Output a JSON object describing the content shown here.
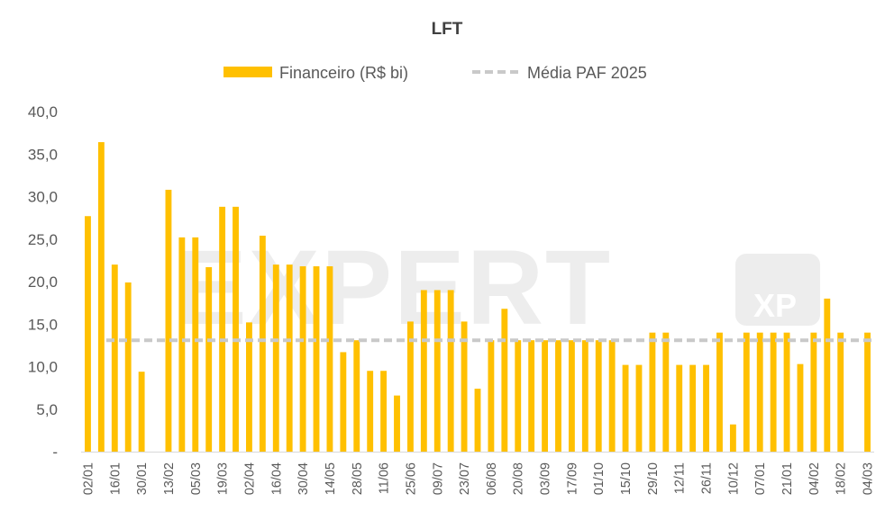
{
  "watermark": {
    "main": "EXPERT",
    "badge": "XP"
  },
  "colors": {
    "bar": "#FFC000",
    "avg_line": "#C9C9C9",
    "axis": "#D9D9D9",
    "text": "#595959"
  },
  "chart_data": {
    "type": "bar",
    "title": "LFT",
    "legend_position": "top",
    "grid": false,
    "xlabel": "",
    "ylabel": "",
    "ylim": [
      0,
      40
    ],
    "yticks": [
      {
        "value": 0,
        "label": "-"
      },
      {
        "value": 5,
        "label": "5,0"
      },
      {
        "value": 10,
        "label": "10,0"
      },
      {
        "value": 15,
        "label": "15,0"
      },
      {
        "value": 20,
        "label": "20,0"
      },
      {
        "value": 25,
        "label": "25,0"
      },
      {
        "value": 30,
        "label": "30,0"
      },
      {
        "value": 35,
        "label": "35,0"
      },
      {
        "value": 40,
        "label": "40,0"
      }
    ],
    "tick_labels": [
      "02/01",
      "16/01",
      "30/01",
      "13/02",
      "05/03",
      "19/03",
      "02/04",
      "16/04",
      "30/04",
      "14/05",
      "28/05",
      "11/06",
      "25/06",
      "09/07",
      "23/07",
      "06/08",
      "20/08",
      "03/09",
      "17/09",
      "01/10",
      "15/10",
      "29/10",
      "12/11",
      "26/11",
      "10/12",
      "07/01",
      "21/01",
      "04/02",
      "18/02",
      "04/03"
    ],
    "series": [
      {
        "name": "Financeiro (R$ bi)",
        "kind": "bar",
        "values": [
          27.7,
          36.4,
          22.0,
          19.9,
          9.4,
          0,
          30.8,
          25.2,
          25.2,
          21.7,
          28.8,
          28.8,
          15.2,
          25.4,
          22.0,
          22.0,
          21.8,
          21.8,
          21.8,
          11.7,
          13.1,
          9.5,
          9.5,
          6.6,
          15.3,
          19.0,
          19.0,
          19.0,
          15.3,
          7.4,
          13.1,
          16.8,
          13.1,
          13.1,
          13.1,
          13.1,
          13.1,
          13.1,
          13.1,
          13.1,
          10.2,
          10.2,
          14.0,
          14.0,
          10.2,
          10.2,
          10.2,
          14.0,
          3.2,
          14.0,
          14.0,
          14.0,
          14.0,
          10.3,
          14.0,
          18.0,
          14.0,
          0,
          14.0
        ]
      },
      {
        "name": "Média PAF 2025",
        "kind": "line",
        "value": 13.1
      }
    ]
  }
}
